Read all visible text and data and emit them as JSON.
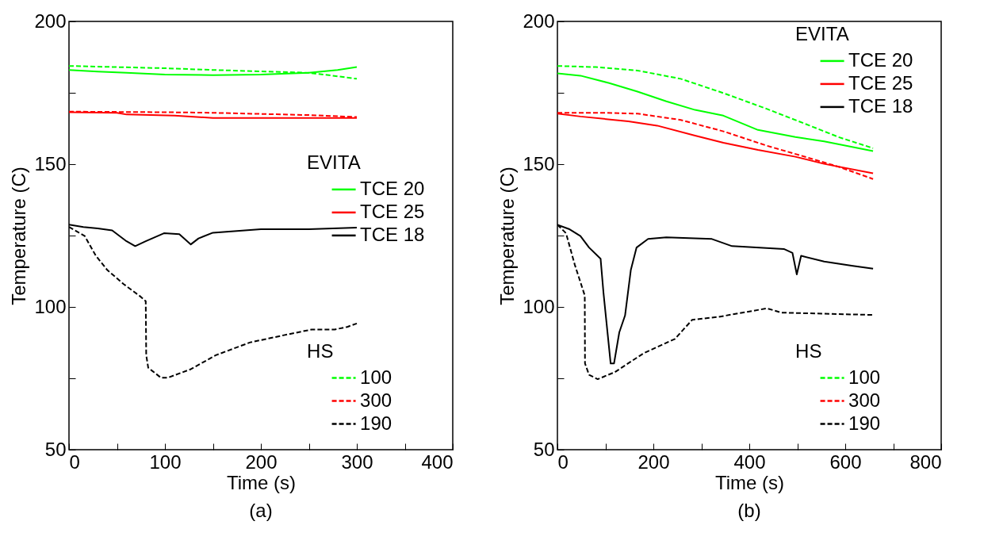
{
  "chart_data": [
    {
      "type": "line",
      "title": "(a)",
      "xlabel": "Time (s)",
      "ylabel": "Temperature (C)",
      "xlim": [
        0,
        400
      ],
      "ylim": [
        50,
        200
      ],
      "xticks": [
        0,
        {
          "value": 50,
          "label": null
        },
        100,
        {
          "value": 150,
          "label": null
        },
        200,
        {
          "value": 250,
          "label": null
        },
        300,
        {
          "value": 350,
          "label": null
        },
        400
      ],
      "yticks": [
        50,
        {
          "value": 75,
          "label": null
        },
        100,
        {
          "value": 125,
          "label": null
        },
        150,
        {
          "value": 175,
          "label": null
        },
        200
      ],
      "legend": "bottom right",
      "legend_title": "EVITA",
      "annotations": [
        "HS"
      ],
      "series": [
        {
          "name": "TCE 20",
          "color": "#00ff00",
          "line_style": "solid",
          "x": [
            0,
            30,
            60,
            100,
            150,
            200,
            250,
            280,
            300
          ],
          "values": [
            183,
            182.4,
            182,
            181.4,
            181.2,
            181.4,
            182,
            183,
            184
          ]
        },
        {
          "name": "TCE 25",
          "color": "#ff0000",
          "line_style": "solid",
          "x": [
            0,
            50,
            60,
            110,
            150,
            200,
            250,
            300
          ],
          "values": [
            168.2,
            168,
            167.4,
            167,
            166.2,
            166.2,
            166.2,
            166.2
          ]
        },
        {
          "name": "TCE 18",
          "color": "#000000",
          "line_style": "solid",
          "x": [
            0,
            15,
            30,
            45,
            60,
            69,
            80,
            99,
            115,
            127,
            135,
            150,
            200,
            250,
            300
          ],
          "values": [
            128.8,
            128,
            127.5,
            126.8,
            123,
            121.3,
            123,
            125.8,
            125.5,
            121.9,
            124,
            126,
            127.2,
            127.2,
            127.8
          ]
        },
        {
          "name": "100",
          "color": "#00ff00",
          "line_style": "dashed",
          "x": [
            0,
            50,
            100,
            150,
            200,
            250,
            275,
            300
          ],
          "values": [
            184.4,
            184,
            183.6,
            183,
            182.5,
            182,
            181,
            179.9
          ]
        },
        {
          "name": "300",
          "color": "#ff0000",
          "line_style": "dashed",
          "x": [
            0,
            100,
            150,
            200,
            250,
            300
          ],
          "values": [
            168.4,
            168.2,
            168,
            167.6,
            167.2,
            166.5
          ]
        },
        {
          "name": "190",
          "color": "#000000",
          "line_style": "dashed",
          "x": [
            0,
            16.5,
            28,
            40,
            57,
            75,
            80,
            80.5,
            82.6,
            95.9,
            103,
            127,
            153,
            189,
            224,
            253,
            277,
            290,
            300
          ],
          "values": [
            128,
            124.8,
            117.9,
            112.9,
            108,
            103.5,
            102,
            83.1,
            78.7,
            75.2,
            75.2,
            78.2,
            83.1,
            87.6,
            90.1,
            92.1,
            92.1,
            93,
            94.2
          ]
        }
      ]
    },
    {
      "type": "line",
      "title": "(b)",
      "xlabel": "Time (s)",
      "ylabel": "Temperature (C)",
      "xlim": [
        0,
        800
      ],
      "ylim": [
        50,
        200
      ],
      "xticks": [
        0,
        {
          "value": 100,
          "label": null
        },
        200,
        {
          "value": 300,
          "label": null
        },
        400,
        {
          "value": 500,
          "label": null
        },
        600,
        {
          "value": 700,
          "label": null
        },
        800
      ],
      "yticks": [
        50,
        {
          "value": 75,
          "label": null
        },
        100,
        {
          "value": 125,
          "label": null
        },
        150,
        {
          "value": 175,
          "label": null
        },
        200
      ],
      "legend": "right",
      "legend_title": "EVITA",
      "annotations": [
        "HS"
      ],
      "series": [
        {
          "name": "TCE 20",
          "color": "#00ff00",
          "line_style": "solid",
          "x": [
            0,
            48,
            108,
            167,
            227,
            287,
            346,
            418,
            496,
            556,
            658
          ],
          "values": [
            181.8,
            181,
            178.4,
            175.4,
            172,
            169,
            167,
            162,
            159.5,
            158,
            154.6
          ]
        },
        {
          "name": "TCE 25",
          "color": "#ff0000",
          "line_style": "solid",
          "x": [
            0,
            48,
            148,
            208,
            287,
            346,
            418,
            496,
            556,
            658
          ],
          "values": [
            167.7,
            166.7,
            165,
            163.5,
            160,
            157.5,
            155,
            152.6,
            150.1,
            146.8
          ]
        },
        {
          "name": "TCE 18",
          "color": "#000000",
          "line_style": "solid",
          "x": [
            0,
            24,
            48,
            66,
            90,
            96,
            105,
            111,
            118,
            129,
            141,
            153,
            165,
            189,
            227,
            322,
            364,
            472,
            490,
            499,
            508,
            556,
            616,
            658
          ],
          "values": [
            128.8,
            127.3,
            124.8,
            120.8,
            116.9,
            105,
            90.1,
            80.2,
            80.2,
            91.1,
            97,
            112.9,
            120.8,
            123.8,
            124.4,
            123.8,
            121.3,
            120.3,
            118.9,
            111.4,
            117.9,
            115.9,
            114.4,
            113.4
          ]
        },
        {
          "name": "100",
          "color": "#00ff00",
          "line_style": "dashed",
          "x": [
            0,
            80,
            167,
            257,
            346,
            436,
            526,
            586,
            658
          ],
          "values": [
            184.4,
            184,
            182.8,
            179.9,
            174.9,
            169.4,
            163.5,
            159.5,
            155.6
          ]
        },
        {
          "name": "300",
          "color": "#ff0000",
          "line_style": "dashed",
          "x": [
            0,
            100,
            167,
            257,
            346,
            436,
            526,
            586,
            658
          ],
          "values": [
            168,
            168,
            167.7,
            165.5,
            161.5,
            156.5,
            152.1,
            149.1,
            144.8
          ]
        },
        {
          "name": "190",
          "color": "#000000",
          "line_style": "dashed",
          "x": [
            0,
            18,
            36,
            57,
            57.5,
            66,
            84,
            120,
            179,
            245,
            281,
            335,
            437,
            467,
            658
          ],
          "values": [
            128.8,
            125.8,
            114.9,
            104,
            80.2,
            76.2,
            74.7,
            77.2,
            83.7,
            88.8,
            95.5,
            96.5,
            99.5,
            98,
            97.2
          ]
        }
      ]
    }
  ]
}
